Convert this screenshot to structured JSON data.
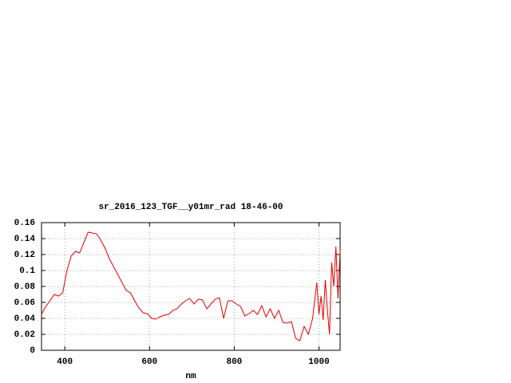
{
  "chart_data": {
    "type": "line",
    "title": "sr_2016_123_TGF__y01mr_rad 18-46-00",
    "xlabel": "nm",
    "x": [
      345,
      355,
      365,
      375,
      385,
      395,
      405,
      415,
      425,
      435,
      445,
      455,
      465,
      475,
      485,
      495,
      505,
      515,
      525,
      535,
      545,
      555,
      565,
      575,
      585,
      595,
      605,
      615,
      625,
      635,
      645,
      655,
      665,
      675,
      685,
      695,
      705,
      715,
      725,
      735,
      745,
      755,
      765,
      775,
      785,
      795,
      805,
      815,
      825,
      835,
      845,
      855,
      865,
      875,
      885,
      895,
      905,
      915,
      925,
      935,
      945,
      955,
      965,
      975,
      985,
      995,
      1000,
      1005,
      1010,
      1015,
      1020,
      1025,
      1030,
      1035,
      1040,
      1045,
      1050
    ],
    "series": [
      {
        "color": "#e00000",
        "values": [
          0.045,
          0.055,
          0.062,
          0.07,
          0.068,
          0.072,
          0.1,
          0.118,
          0.124,
          0.122,
          0.135,
          0.148,
          0.147,
          0.146,
          0.138,
          0.128,
          0.115,
          0.105,
          0.095,
          0.085,
          0.075,
          0.072,
          0.062,
          0.053,
          0.047,
          0.046,
          0.04,
          0.039,
          0.042,
          0.044,
          0.045,
          0.05,
          0.052,
          0.058,
          0.062,
          0.065,
          0.058,
          0.064,
          0.063,
          0.052,
          0.058,
          0.064,
          0.066,
          0.04,
          0.062,
          0.062,
          0.058,
          0.055,
          0.043,
          0.046,
          0.05,
          0.045,
          0.056,
          0.042,
          0.052,
          0.04,
          0.05,
          0.035,
          0.034,
          0.036,
          0.015,
          0.012,
          0.03,
          0.02,
          0.04,
          0.085,
          0.045,
          0.068,
          0.038,
          0.088,
          0.05,
          0.02,
          0.11,
          0.08,
          0.13,
          0.065,
          0.125
        ]
      }
    ],
    "xlim": [
      345,
      1050
    ],
    "ylim": [
      0,
      0.16
    ],
    "xticks": [
      400,
      600,
      800,
      1000
    ],
    "yticks": [
      0,
      0.02,
      0.04,
      0.06,
      0.08,
      0.1,
      0.12,
      0.14,
      0.16
    ],
    "grid": true
  }
}
